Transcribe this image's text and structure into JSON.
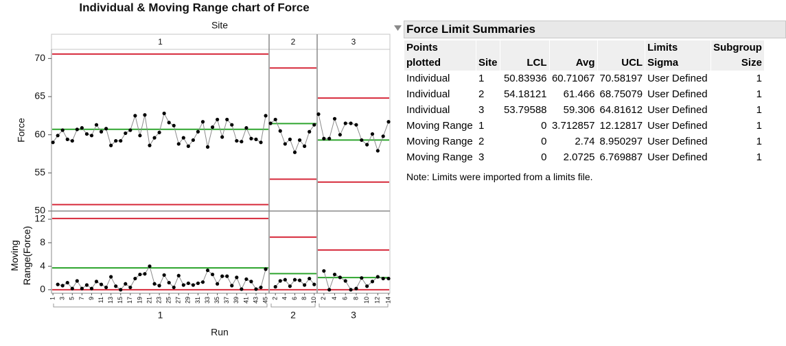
{
  "chart_data": {
    "type": "control",
    "title": "Individual & Moving Range chart of Force",
    "facet_label": "Site",
    "x_label": "Run",
    "limit_color": "#d62839",
    "center_color": "#2ea52e",
    "point_color": "#000000",
    "connector_color": "#8a8a8a",
    "individual": {
      "y_label": "Force",
      "ylim": [
        50,
        71.2
      ],
      "yticks": [
        50,
        55,
        60,
        65,
        70
      ]
    },
    "moving_range": {
      "y_label": "Moving Range(Force)",
      "ylim": [
        -0.6,
        13.4
      ],
      "yticks": [
        0,
        4,
        8,
        12
      ]
    },
    "panels": [
      {
        "site": "1",
        "xlim": [
          0.7,
          45.7
        ],
        "xticks": [
          1,
          3,
          5,
          7,
          9,
          11,
          13,
          15,
          17,
          19,
          21,
          23,
          25,
          27,
          29,
          31,
          33,
          35,
          37,
          39,
          41,
          43,
          45
        ],
        "individual": [
          59.0,
          59.9,
          60.6,
          59.4,
          59.2,
          60.7,
          60.9,
          60.1,
          59.9,
          61.3,
          60.4,
          60.8,
          58.6,
          59.2,
          59.2,
          60.2,
          60.6,
          62.5,
          59.9,
          62.6,
          58.6,
          59.6,
          60.3,
          62.8,
          61.6,
          61.2,
          58.8,
          59.6,
          58.5,
          59.3,
          60.4,
          61.7,
          58.4,
          61.0,
          62.0,
          59.7,
          62.0,
          61.3,
          59.2,
          59.1,
          60.9,
          59.5,
          59.4,
          59.0,
          62.5
        ],
        "moving_range": [
          null,
          0.9,
          0.7,
          1.2,
          0.2,
          1.5,
          0.2,
          0.8,
          0.2,
          1.4,
          0.9,
          0.4,
          2.2,
          0.6,
          0.0,
          1.0,
          0.4,
          1.9,
          2.6,
          2.7,
          4.0,
          1.0,
          0.7,
          2.5,
          1.2,
          0.4,
          2.4,
          0.8,
          1.1,
          0.8,
          1.1,
          1.3,
          3.3,
          2.6,
          1.0,
          2.3,
          2.3,
          0.7,
          2.1,
          0.1,
          1.8,
          1.4,
          0.1,
          0.4,
          3.5
        ]
      },
      {
        "site": "2",
        "xlim": [
          0.7,
          10.6
        ],
        "xticks": [
          2,
          4,
          6,
          8,
          10
        ],
        "individual": [
          61.5,
          62.0,
          60.5,
          58.8,
          59.4,
          57.7,
          59.3,
          58.5,
          60.4,
          61.3
        ],
        "moving_range": [
          null,
          0.5,
          1.5,
          1.7,
          0.6,
          1.7,
          1.6,
          0.8,
          1.9,
          0.9
        ]
      },
      {
        "site": "3",
        "xlim": [
          0.75,
          14.25
        ],
        "xticks": [
          2,
          4,
          6,
          8,
          10,
          12,
          14
        ],
        "individual": [
          62.7,
          59.5,
          59.5,
          62.1,
          60.0,
          61.5,
          61.5,
          61.3,
          59.3,
          58.7,
          60.1,
          57.9,
          59.8,
          61.7
        ],
        "moving_range": [
          null,
          3.2,
          0.0,
          2.6,
          2.1,
          1.5,
          0.0,
          0.2,
          2.0,
          0.6,
          1.4,
          2.2,
          1.9,
          1.9
        ]
      }
    ]
  },
  "table": {
    "title": "Force Limit Summaries",
    "columns": [
      "Points plotted",
      "Site",
      "LCL",
      "Avg",
      "UCL",
      "Limits Sigma",
      "Subgroup Size"
    ],
    "rows": [
      [
        "Individual",
        1,
        50.83936,
        60.71067,
        70.58197,
        "User Defined",
        1
      ],
      [
        "Individual",
        2,
        54.18121,
        61.466,
        68.75079,
        "User Defined",
        1
      ],
      [
        "Individual",
        3,
        53.79588,
        59.306,
        64.81612,
        "User Defined",
        1
      ],
      [
        "Moving Range",
        1,
        0,
        3.712857,
        12.12817,
        "User Defined",
        1
      ],
      [
        "Moving Range",
        2,
        0,
        2.74,
        8.950297,
        "User Defined",
        1
      ],
      [
        "Moving Range",
        3,
        0,
        2.0725,
        6.769887,
        "User Defined",
        1
      ]
    ],
    "note": "Note: Limits were imported from a limits file."
  }
}
